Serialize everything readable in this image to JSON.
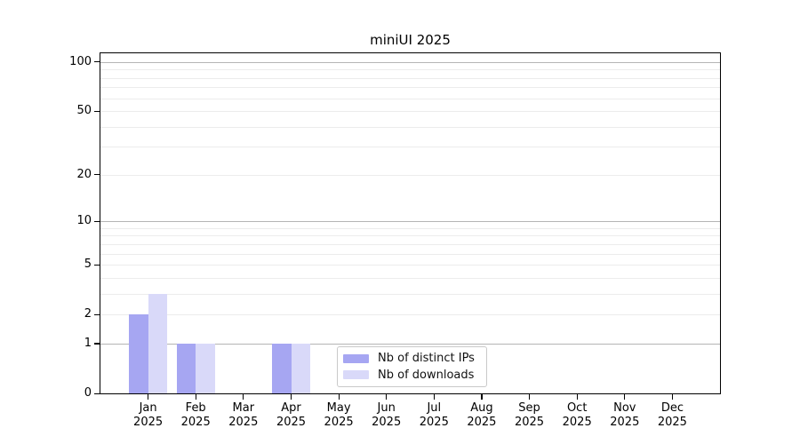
{
  "chart_data": {
    "type": "bar",
    "title": "miniUI 2025",
    "categories": [
      "Jan",
      "Feb",
      "Mar",
      "Apr",
      "May",
      "Jun",
      "Jul",
      "Aug",
      "Sep",
      "Oct",
      "Nov",
      "Dec"
    ],
    "category_year": "2025",
    "series": [
      {
        "name": "Nb of distinct IPs",
        "color": "#a6a6f2",
        "values": [
          2,
          1,
          0,
          1,
          0,
          0,
          0,
          0,
          0,
          0,
          0,
          0
        ]
      },
      {
        "name": "Nb of downloads",
        "color": "#d9d9f9",
        "values": [
          3,
          1,
          0,
          1,
          0,
          0,
          0,
          0,
          0,
          0,
          0,
          0
        ]
      }
    ],
    "xlabel": "",
    "ylabel": "",
    "yticks": [
      0,
      1,
      2,
      5,
      10,
      20,
      50,
      100
    ],
    "scale": "log1p",
    "ylim": [
      0,
      113
    ],
    "grid": "horizontal",
    "gridlines_major": [
      1,
      10,
      100
    ],
    "gridlines_minor": [
      2,
      3,
      4,
      5,
      6,
      7,
      8,
      9,
      20,
      30,
      40,
      50,
      60,
      70,
      80,
      90
    ],
    "legend_position": "lower center",
    "colors": {
      "major_grid": "#b5b5b5",
      "minor_grid": "#ececec",
      "axis": "#000000"
    }
  }
}
